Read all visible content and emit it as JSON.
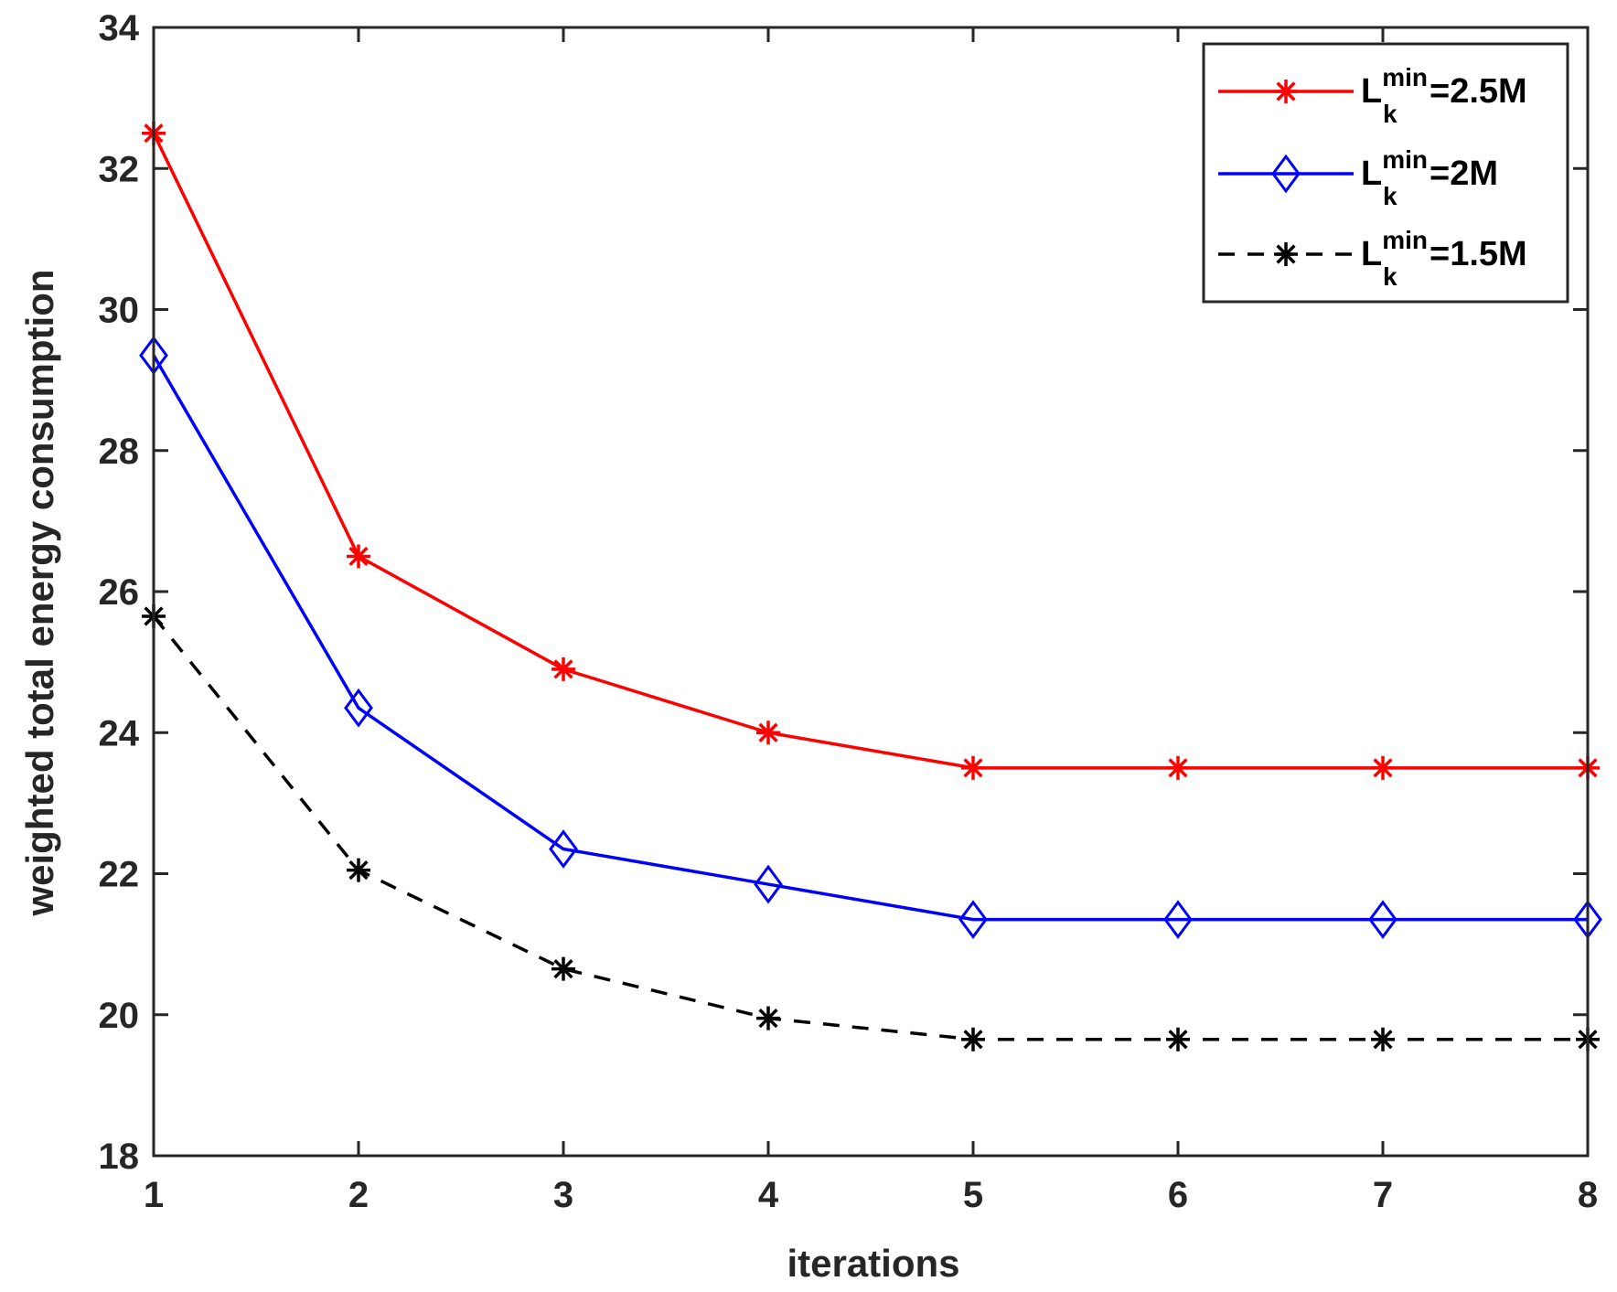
{
  "chart_data": {
    "type": "line",
    "title": "",
    "xlabel": "iterations",
    "ylabel": "weighted total energy consumption",
    "xlim": [
      1,
      8
    ],
    "ylim": [
      18,
      34
    ],
    "xticks": [
      1,
      2,
      3,
      4,
      5,
      6,
      7,
      8
    ],
    "yticks": [
      18,
      20,
      22,
      24,
      26,
      28,
      30,
      32,
      34
    ],
    "x": [
      1,
      2,
      3,
      4,
      5,
      6,
      7,
      8
    ],
    "grid": false,
    "legend_position": "top-right",
    "series": [
      {
        "name": "L_k^min=2.5M",
        "legend": {
          "base": "L",
          "sup": "min",
          "sub": "k",
          "value": "=2.5M"
        },
        "values": [
          32.5,
          26.5,
          24.9,
          24.0,
          23.5,
          23.5,
          23.5,
          23.5
        ],
        "color": "#ff0000",
        "marker": "asterisk",
        "line_style": "solid"
      },
      {
        "name": "L_k^min=2M",
        "legend": {
          "base": "L",
          "sup": "min",
          "sub": "k",
          "value": "=2M"
        },
        "values": [
          29.35,
          24.35,
          22.35,
          21.85,
          21.35,
          21.35,
          21.35,
          21.35
        ],
        "color": "#0000ff",
        "marker": "diamond",
        "line_style": "solid"
      },
      {
        "name": "L_k^min=1.5M",
        "legend": {
          "base": "L",
          "sup": "min",
          "sub": "k",
          "value": "=1.5M"
        },
        "values": [
          25.65,
          22.05,
          20.65,
          19.95,
          19.65,
          19.65,
          19.65,
          19.65
        ],
        "color": "#000000",
        "marker": "asterisk",
        "line_style": "dashed"
      }
    ]
  }
}
